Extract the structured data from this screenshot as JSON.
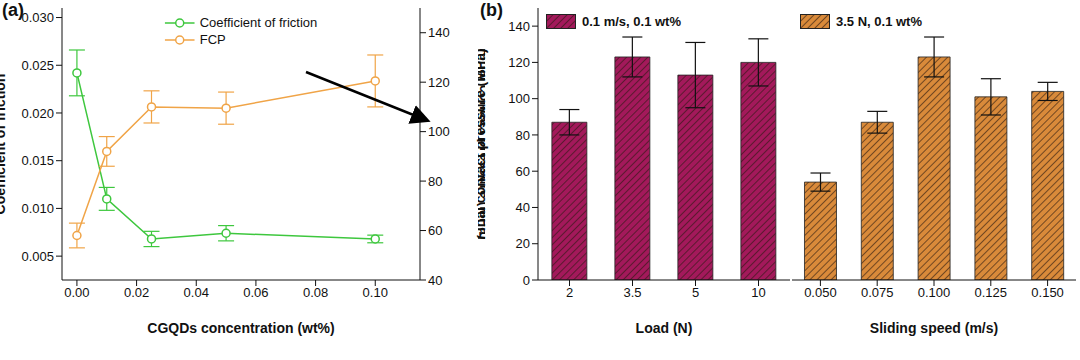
{
  "chart_data": [
    {
      "type": "line",
      "title": "(a)",
      "x_label": "CGQDs concentration (wt%)",
      "y_label": "Coefficient of friction",
      "y2_label": "Final contact pressure (MPa)",
      "x": [
        0,
        0.01,
        0.025,
        0.05,
        0.1
      ],
      "xlim": [
        -0.005,
        0.115
      ],
      "xticks": [
        {
          "value": 0,
          "label": "0.00"
        },
        {
          "value": 0.02,
          "label": "0.02"
        },
        {
          "value": 0.04,
          "label": "0.04"
        },
        {
          "value": 0.06,
          "label": "0.06"
        },
        {
          "value": 0.08,
          "label": "0.08"
        },
        {
          "value": 0.1,
          "label": "0.10"
        }
      ],
      "ylim": [
        0.0025,
        0.031
      ],
      "yticks": [
        0.005,
        {
          "value": 0.01,
          "label": "0.010"
        },
        0.015,
        {
          "value": 0.02,
          "label": "0.020"
        },
        0.025,
        {
          "value": 0.03,
          "label": "0.030"
        }
      ],
      "y2lim": [
        40,
        150
      ],
      "y2ticks": [
        40,
        60,
        80,
        100,
        120,
        140
      ],
      "legend": "upper center",
      "series": [
        {
          "name": "Coefficient of friction",
          "color": "#3ec73e",
          "marker": "circle",
          "values": [
            0.0242,
            0.011,
            0.0068,
            0.0074,
            0.0068
          ],
          "errors": [
            0.0024,
            0.0012,
            0.0008,
            0.0008,
            0.0004
          ]
        },
        {
          "name": "FCP",
          "color": "#f0a447",
          "marker": "circle",
          "axis": "y2",
          "values": [
            58,
            92,
            110,
            109.5,
            120.5
          ],
          "errors": [
            5,
            6,
            6.5,
            6.5,
            10.5
          ]
        }
      ]
    },
    {
      "type": "bar",
      "title": "(b)",
      "x_label": "Load (N)",
      "y_label": "Final contact pressure (MPa)",
      "categories": [
        "2",
        "3.5",
        "5",
        "10"
      ],
      "ylim": [
        0,
        150
      ],
      "yticks": [
        0,
        20,
        40,
        60,
        80,
        100,
        120,
        140
      ],
      "legend": "upper left",
      "series": [
        {
          "name": "0.1 m/s, 0.1 wt%",
          "color": "#a3195b",
          "values": [
            87,
            123,
            113,
            120
          ],
          "errors": [
            7,
            11,
            18,
            13
          ]
        }
      ]
    },
    {
      "type": "bar",
      "x_label": "Sliding speed (m/s)",
      "categories": [
        "0.050",
        "0.075",
        "0.100",
        "0.125",
        "0.150"
      ],
      "ylim": [
        0,
        150
      ],
      "yticks": [
        0,
        20,
        40,
        60,
        80,
        100,
        120,
        140
      ],
      "tick_labels": "x",
      "legend": "upper left",
      "series": [
        {
          "name": "3.5 N, 0.1 wt%",
          "color": "#d98a3a",
          "values": [
            54,
            87,
            123,
            101,
            104
          ],
          "errors": [
            5,
            6,
            11,
            10,
            5
          ]
        }
      ]
    }
  ]
}
